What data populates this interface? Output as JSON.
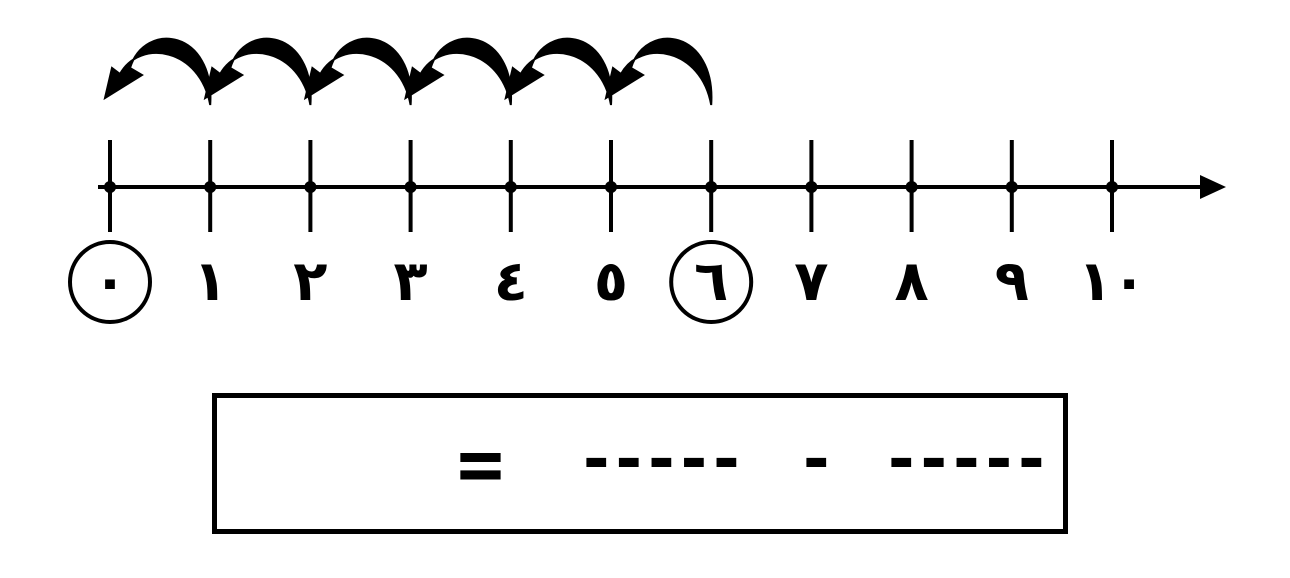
{
  "number_line": {
    "labels": [
      "٠",
      "١",
      "٢",
      "٣",
      "٤",
      "٥",
      "٦",
      "٧",
      "٨",
      "٩",
      "١٠"
    ],
    "circled": [
      "٠",
      "٦"
    ],
    "hop_count": 6
  },
  "equation": {
    "equals": "=",
    "blank1": "-----",
    "operator": "-",
    "blank2": "-----"
  },
  "colors": {
    "ink": "#000000",
    "background": "#ffffff"
  }
}
